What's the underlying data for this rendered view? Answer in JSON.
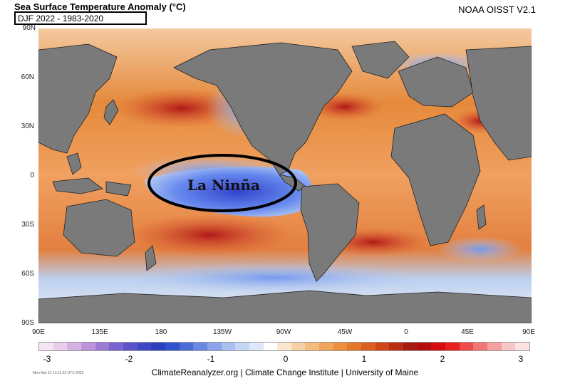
{
  "header": {
    "title": "Sea Surface Temperature Anomaly (°C)",
    "subtitle": "DJF 2022 - 1983-2020",
    "source": "NOAA OISST V2.1"
  },
  "map": {
    "latitude_labels": [
      "90N",
      "60N",
      "30N",
      "0",
      "30S",
      "60S",
      "90S"
    ],
    "longitude_labels": [
      "90E",
      "135E",
      "180",
      "135W",
      "90W",
      "45W",
      "0",
      "45E",
      "90E"
    ],
    "annotation": "La Ninña",
    "colors": {
      "land": "#7a7a7a",
      "warm": "#e07020",
      "cool": "#5577dd"
    }
  },
  "colorbar": {
    "labels": [
      "-3",
      "-2",
      "-1",
      "0",
      "1",
      "2",
      "3"
    ],
    "min": -3,
    "max": 3
  },
  "footer": {
    "credit": "ClimateReanalyzer.org | Climate Change Institute | University of Maine",
    "timestamp": "Mon Mar 21 12:11:52 UTC 2022"
  }
}
